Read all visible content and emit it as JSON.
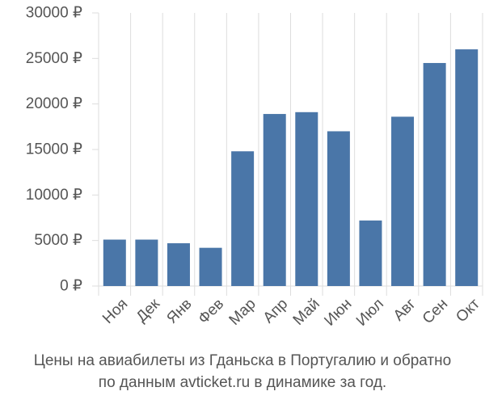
{
  "chart_data": {
    "type": "bar",
    "categories": [
      "Ноя",
      "Дек",
      "Янв",
      "Фев",
      "Мар",
      "Апр",
      "Май",
      "Июн",
      "Июл",
      "Авг",
      "Сен",
      "Окт"
    ],
    "values": [
      5100,
      5100,
      4700,
      4200,
      14800,
      18900,
      19100,
      17000,
      7200,
      18600,
      24500,
      26000
    ],
    "ylim": [
      0,
      30000
    ],
    "yticks": [
      "0 ₽",
      "5000 ₽",
      "10000 ₽",
      "15000 ₽",
      "20000 ₽",
      "25000 ₽",
      "30000 ₽"
    ],
    "ytick_values": [
      0,
      5000,
      10000,
      15000,
      20000,
      25000,
      30000
    ],
    "grid": "vertical",
    "bar_color": "#4a76a8",
    "grid_color": "#dddddd",
    "text_color": "#555555"
  },
  "caption": {
    "line1": "Цены на авиабилеты из Гданьска в Португалию и обратно",
    "line2": "по данным avticket.ru в динамике за год."
  }
}
